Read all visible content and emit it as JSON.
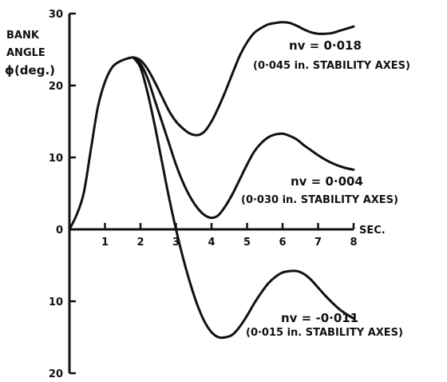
{
  "chart_data": {
    "type": "line",
    "title": "",
    "ylabel_lines": [
      "BANK",
      "ANGLE",
      "ϕ(deg.)"
    ],
    "xlabel": "SEC.",
    "xlim": [
      0,
      8
    ],
    "ylim": [
      -20,
      30
    ],
    "x_ticks": [
      1,
      2,
      3,
      4,
      5,
      6,
      7,
      8
    ],
    "y_tick_labels": [
      {
        "value": 30,
        "label": "30"
      },
      {
        "value": 20,
        "label": "20"
      },
      {
        "value": 10,
        "label": "10"
      },
      {
        "value": 0,
        "label": "0"
      },
      {
        "value": -10,
        "label": "10"
      },
      {
        "value": -20,
        "label": "20"
      }
    ],
    "grid": false,
    "series": [
      {
        "name": "nv = 0.018",
        "annotation": [
          "nv = 0·018",
          "(0·045 in. STABILITY AXES)"
        ],
        "x": [
          0,
          0.2,
          0.4,
          0.6,
          0.8,
          1.0,
          1.2,
          1.4,
          1.6,
          1.8,
          2.0,
          2.2,
          2.4,
          2.6,
          2.8,
          3.0,
          3.2,
          3.4,
          3.6,
          3.8,
          4.0,
          4.2,
          4.4,
          4.6,
          4.8,
          5.0,
          5.2,
          5.4,
          5.6,
          5.8,
          6.0,
          6.2,
          6.4,
          6.6,
          6.8,
          7.0,
          7.2,
          7.4,
          7.6,
          7.8,
          8.0
        ],
        "values": [
          0,
          2,
          5,
          11,
          17,
          20.5,
          22.5,
          23.3,
          23.7,
          23.9,
          23.5,
          22.3,
          20.5,
          18.5,
          16.5,
          15,
          14,
          13.3,
          13.1,
          13.6,
          15,
          17,
          19.3,
          21.8,
          24.2,
          26,
          27.3,
          28,
          28.5,
          28.7,
          28.8,
          28.7,
          28.3,
          27.8,
          27.4,
          27.2,
          27.2,
          27.3,
          27.6,
          27.9,
          28.2
        ]
      },
      {
        "name": "nv = 0.004",
        "annotation": [
          "nv = 0·004",
          "(0·030 in. STABILITY AXES)"
        ],
        "x": [
          1.8,
          2.0,
          2.2,
          2.4,
          2.6,
          2.8,
          3.0,
          3.2,
          3.4,
          3.6,
          3.8,
          4.0,
          4.2,
          4.4,
          4.6,
          4.8,
          5.0,
          5.2,
          5.4,
          5.6,
          5.8,
          6.0,
          6.2,
          6.4,
          6.6,
          6.8,
          7.0,
          7.2,
          7.4,
          7.6,
          7.8,
          8.0
        ],
        "values": [
          23.9,
          23,
          21,
          18,
          15,
          12,
          9,
          6.5,
          4.5,
          3,
          2,
          1.6,
          2,
          3.3,
          5,
          7,
          9,
          10.8,
          12,
          12.8,
          13.2,
          13.3,
          13,
          12.5,
          11.7,
          11,
          10.3,
          9.7,
          9.2,
          8.8,
          8.5,
          8.3
        ]
      },
      {
        "name": "nv = -0.011",
        "annotation": [
          "nv = -0·011",
          "(0·015 in. STABILITY AXES)"
        ],
        "x": [
          1.8,
          2.0,
          2.2,
          2.4,
          2.6,
          2.8,
          3.0,
          3.2,
          3.4,
          3.6,
          3.8,
          4.0,
          4.2,
          4.4,
          4.6,
          4.8,
          5.0,
          5.2,
          5.4,
          5.6,
          5.8,
          6.0,
          6.2,
          6.4,
          6.6,
          6.8,
          7.0,
          7.2,
          7.4,
          7.6,
          7.8,
          8.0
        ],
        "values": [
          23.9,
          22.5,
          19,
          14.5,
          9.5,
          4.5,
          0,
          -4,
          -7.5,
          -10.5,
          -12.8,
          -14.3,
          -15,
          -15,
          -14.6,
          -13.5,
          -12,
          -10.3,
          -8.8,
          -7.5,
          -6.6,
          -6,
          -5.8,
          -5.8,
          -6.2,
          -7,
          -8.1,
          -9.2,
          -10.2,
          -11.1,
          -11.8,
          -12.4
        ]
      }
    ]
  }
}
